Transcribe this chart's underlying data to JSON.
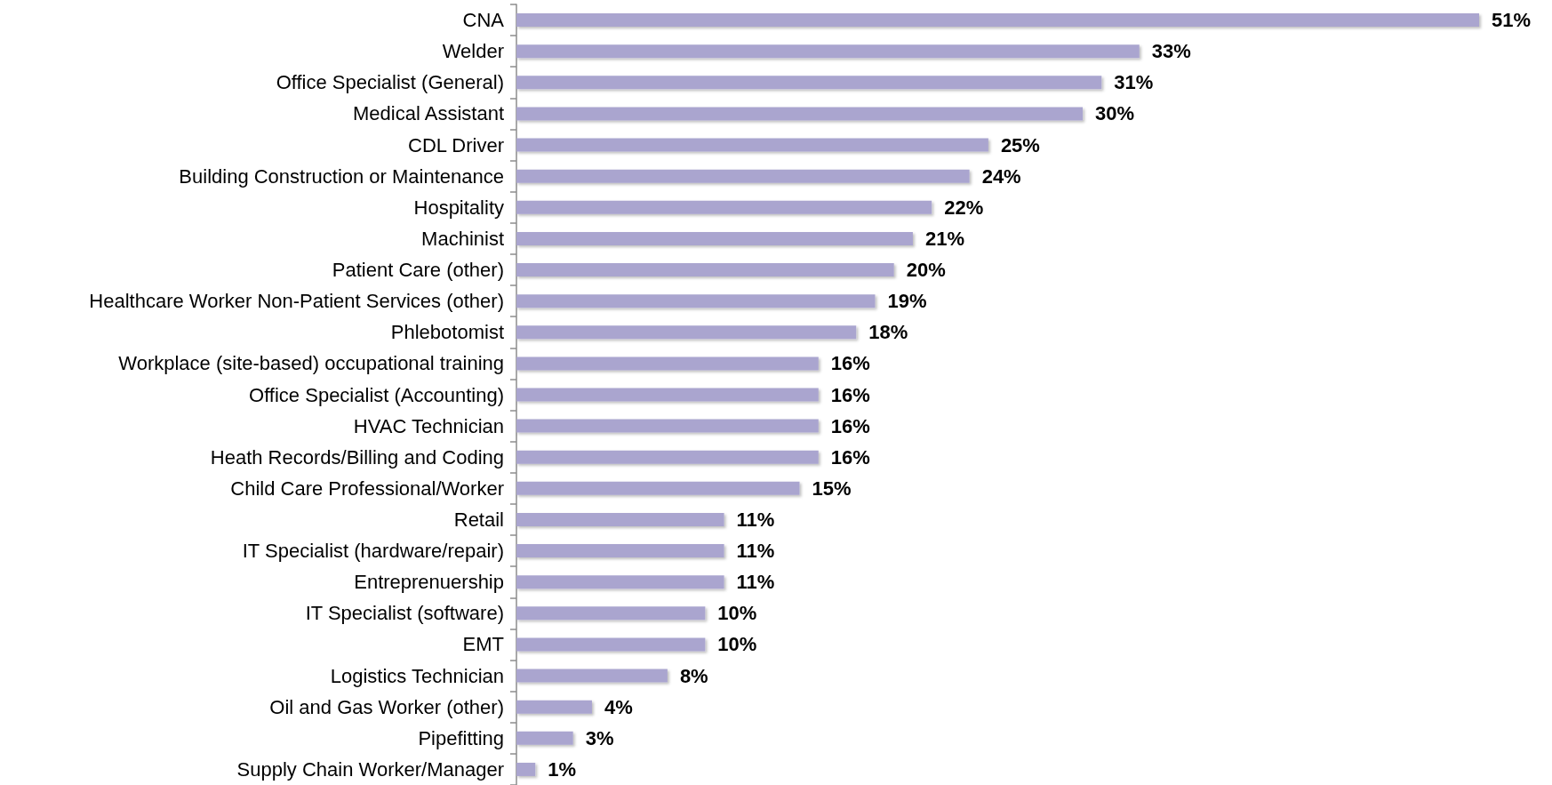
{
  "chart_data": {
    "type": "bar",
    "orientation": "horizontal",
    "tick_labels": "y",
    "color": "#aaa5cf",
    "categories": [
      "CNA",
      "Welder",
      "Office Specialist (General)",
      "Medical Assistant",
      "CDL Driver",
      "Building Construction or Maintenance",
      "Hospitality",
      "Machinist",
      "Patient Care (other)",
      "Healthcare Worker Non-Patient Services (other)",
      "Phlebotomist",
      "Workplace (site-based) occupational training",
      "Office Specialist (Accounting)",
      "HVAC Technician",
      "Heath Records/Billing and Coding",
      "Child Care Professional/Worker",
      "Retail",
      "IT Specialist (hardware/repair)",
      "Entreprenuership",
      "IT Specialist (software)",
      "EMT",
      "Logistics Technician",
      "Oil and Gas Worker (other)",
      "Pipefitting",
      "Supply Chain Worker/Manager"
    ],
    "values": [
      51,
      33,
      31,
      30,
      25,
      24,
      22,
      21,
      20,
      19,
      18,
      16,
      16,
      16,
      16,
      15,
      11,
      11,
      11,
      10,
      10,
      8,
      4,
      3,
      1
    ],
    "value_labels": [
      "51%",
      "33%",
      "31%",
      "30%",
      "25%",
      "24%",
      "22%",
      "21%",
      "20%",
      "19%",
      "18%",
      "16%",
      "16%",
      "16%",
      "16%",
      "15%",
      "11%",
      "11%",
      "11%",
      "10%",
      "10%",
      "8%",
      "4%",
      "3%",
      "1%"
    ]
  }
}
